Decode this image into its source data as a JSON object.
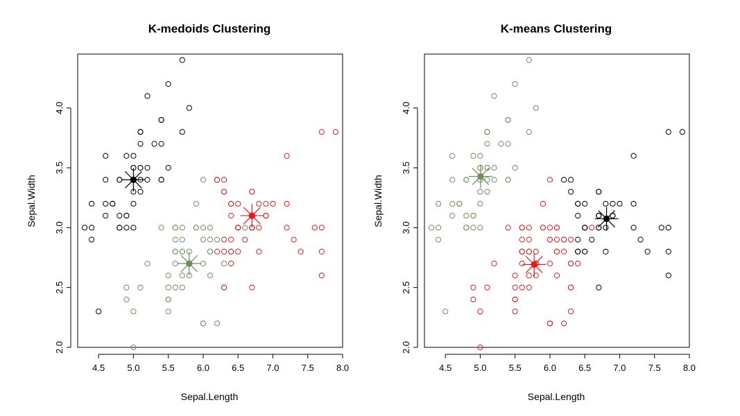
{
  "chart_data": [
    {
      "type": "scatter",
      "title": "K-medoids Clustering",
      "xlabel": "Sepal.Length",
      "ylabel": "Sepal.Width",
      "xlim": [
        4.2,
        8.0
      ],
      "ylim": [
        2.0,
        4.45
      ],
      "xticks": [
        "4.5",
        "5.0",
        "5.5",
        "6.0",
        "6.5",
        "7.0",
        "7.5",
        "8.0"
      ],
      "yticks": [
        "2.0",
        "2.5",
        "3.0",
        "3.5",
        "4.0"
      ],
      "grid": false,
      "colors": [
        "#000000",
        "#e41a1c",
        "#6b8e5a"
      ],
      "series": [
        {
          "color": "#000000",
          "x": [
            5.1,
            4.9,
            4.7,
            4.6,
            5.0,
            5.4,
            4.6,
            5.0,
            4.4,
            4.9,
            5.4,
            4.8,
            4.8,
            4.3,
            5.8,
            5.7,
            5.4,
            5.1,
            5.7,
            5.1,
            5.4,
            5.1,
            4.6,
            5.1,
            4.8,
            5.0,
            5.0,
            5.2,
            5.2,
            4.7,
            4.8,
            5.4,
            5.2,
            5.5,
            4.9,
            5.0,
            5.5,
            4.9,
            4.4,
            5.1,
            5.0,
            4.5,
            4.4,
            5.0,
            5.1,
            4.8,
            5.1,
            4.6,
            5.3,
            5.0
          ],
          "y": [
            3.5,
            3.0,
            3.2,
            3.1,
            3.6,
            3.9,
            3.4,
            3.4,
            2.9,
            3.1,
            3.7,
            3.4,
            3.0,
            3.0,
            4.0,
            4.4,
            3.9,
            3.5,
            3.8,
            3.8,
            3.4,
            3.7,
            3.6,
            3.3,
            3.4,
            3.0,
            3.4,
            3.5,
            3.4,
            3.2,
            3.1,
            3.4,
            4.1,
            4.2,
            3.1,
            3.2,
            3.5,
            3.6,
            3.0,
            3.4,
            3.5,
            2.3,
            3.2,
            3.5,
            3.8,
            3.0,
            3.8,
            3.2,
            3.7,
            3.3
          ]
        },
        {
          "color": "#e41a1c",
          "x": [
            7.0,
            6.4,
            6.9,
            6.5,
            6.3,
            6.6,
            6.7,
            6.4,
            6.3,
            6.7,
            6.8,
            6.7,
            6.7,
            6.3,
            6.5,
            6.2,
            6.3,
            6.5,
            7.6,
            7.3,
            6.7,
            7.2,
            6.5,
            6.4,
            6.8,
            6.4,
            6.5,
            7.7,
            7.7,
            6.9,
            7.7,
            6.7,
            7.2,
            6.2,
            6.4,
            7.2,
            7.4,
            7.9,
            6.4,
            6.3,
            7.7,
            6.3,
            6.4,
            6.9,
            6.7,
            6.9,
            6.8,
            6.7,
            6.7,
            6.3,
            6.5,
            6.2
          ],
          "y": [
            3.2,
            3.2,
            3.1,
            2.8,
            3.3,
            2.9,
            3.1,
            2.9,
            2.5,
            3.0,
            2.8,
            3.0,
            3.1,
            3.3,
            3.0,
            3.4,
            2.9,
            3.0,
            3.0,
            2.9,
            2.5,
            3.6,
            3.2,
            2.7,
            3.0,
            3.2,
            3.0,
            3.8,
            2.6,
            3.2,
            2.8,
            3.3,
            3.2,
            2.8,
            2.8,
            3.0,
            2.8,
            3.8,
            2.8,
            2.8,
            3.0,
            3.4,
            3.1,
            3.1,
            3.1,
            3.1,
            3.2,
            3.3,
            3.0,
            2.5,
            3.0,
            3.4
          ]
        },
        {
          "color": "#6b8e5a",
          "x": [
            5.5,
            5.7,
            4.9,
            5.2,
            5.0,
            5.9,
            6.0,
            6.1,
            5.6,
            5.6,
            5.8,
            6.2,
            5.6,
            5.9,
            6.1,
            6.1,
            6.6,
            6.0,
            5.7,
            5.5,
            5.5,
            5.8,
            6.0,
            5.4,
            6.0,
            5.6,
            5.5,
            5.5,
            6.1,
            5.8,
            5.0,
            5.6,
            5.7,
            5.7,
            6.2,
            5.1,
            5.7,
            5.8,
            4.9,
            5.7,
            5.8,
            6.0,
            6.1,
            5.6,
            6.0,
            5.9,
            6.3,
            5.6
          ],
          "y": [
            2.3,
            2.8,
            2.4,
            2.7,
            2.0,
            3.0,
            2.2,
            2.9,
            2.9,
            3.0,
            2.7,
            2.2,
            2.5,
            3.2,
            2.8,
            2.8,
            3.0,
            2.9,
            2.6,
            2.4,
            2.4,
            2.7,
            2.7,
            3.0,
            3.4,
            3.0,
            2.5,
            2.6,
            3.0,
            2.6,
            2.3,
            2.7,
            3.0,
            2.9,
            2.9,
            2.5,
            2.8,
            2.7,
            2.5,
            2.5,
            2.8,
            2.2,
            2.6,
            2.8,
            3.0,
            3.0,
            2.7,
            2.8
          ]
        }
      ],
      "centers": [
        {
          "color": "#000000",
          "x": 5.0,
          "y": 3.4
        },
        {
          "color": "#e41a1c",
          "x": 6.7,
          "y": 3.1
        },
        {
          "color": "#6b8e5a",
          "x": 5.8,
          "y": 2.7
        }
      ]
    },
    {
      "type": "scatter",
      "title": "K-means Clustering",
      "xlabel": "Sepal.Length",
      "ylabel": "Sepal.Width",
      "xlim": [
        4.2,
        8.0
      ],
      "ylim": [
        2.0,
        4.45
      ],
      "xticks": [
        "4.5",
        "5.0",
        "5.5",
        "6.0",
        "6.5",
        "7.0",
        "7.5",
        "8.0"
      ],
      "yticks": [
        "2.0",
        "2.5",
        "3.0",
        "3.5",
        "4.0"
      ],
      "grid": false,
      "colors": [
        "#6b8e5a",
        "#e41a1c",
        "#000000"
      ],
      "series": [
        {
          "color": "#6b8e5a",
          "x": [
            5.1,
            4.9,
            4.7,
            4.6,
            5.0,
            5.4,
            4.6,
            5.0,
            4.4,
            4.9,
            5.4,
            4.8,
            4.8,
            4.3,
            5.8,
            5.7,
            5.4,
            5.1,
            5.7,
            5.1,
            5.4,
            5.1,
            4.6,
            5.1,
            4.8,
            5.0,
            5.0,
            5.2,
            5.2,
            4.7,
            4.8,
            5.4,
            5.2,
            5.5,
            4.9,
            5.0,
            5.5,
            4.9,
            4.4,
            5.1,
            5.0,
            4.5,
            4.4,
            5.0,
            5.1,
            4.8,
            5.1,
            4.6,
            5.3,
            5.0
          ],
          "y": [
            3.5,
            3.0,
            3.2,
            3.1,
            3.6,
            3.9,
            3.4,
            3.4,
            2.9,
            3.1,
            3.7,
            3.4,
            3.0,
            3.0,
            4.0,
            4.4,
            3.9,
            3.5,
            3.8,
            3.8,
            3.4,
            3.7,
            3.6,
            3.3,
            3.4,
            3.0,
            3.4,
            3.5,
            3.4,
            3.2,
            3.1,
            3.4,
            4.1,
            4.2,
            3.1,
            3.2,
            3.5,
            3.6,
            3.0,
            3.4,
            3.5,
            2.3,
            3.2,
            3.5,
            3.8,
            3.0,
            3.8,
            3.2,
            3.7,
            3.3
          ]
        },
        {
          "color": "#e41a1c",
          "x": [
            5.5,
            5.7,
            4.9,
            5.2,
            5.0,
            5.9,
            6.0,
            6.1,
            5.6,
            5.6,
            5.8,
            6.2,
            5.6,
            5.9,
            6.1,
            6.1,
            6.6,
            6.0,
            5.7,
            5.5,
            5.5,
            5.8,
            6.0,
            5.4,
            6.0,
            5.6,
            5.5,
            5.5,
            6.1,
            5.8,
            5.0,
            5.6,
            5.7,
            5.7,
            6.2,
            5.1,
            5.7,
            5.8,
            4.9,
            5.7,
            5.8,
            6.0,
            6.1,
            5.6,
            6.0,
            5.9,
            6.3,
            5.6,
            6.4,
            6.3,
            6.2,
            6.3,
            6.5,
            6.1,
            6.3,
            6.0,
            6.3,
            6.2,
            6.3,
            6.0
          ],
          "y": [
            2.3,
            2.8,
            2.4,
            2.7,
            2.0,
            3.0,
            2.2,
            2.9,
            2.9,
            3.0,
            2.7,
            2.2,
            2.5,
            3.2,
            2.8,
            2.8,
            3.0,
            2.9,
            2.6,
            2.4,
            2.4,
            2.7,
            2.7,
            3.0,
            3.4,
            3.0,
            2.5,
            2.6,
            3.0,
            2.6,
            2.3,
            2.7,
            3.0,
            2.9,
            2.9,
            2.5,
            2.8,
            2.7,
            2.5,
            2.5,
            2.8,
            2.2,
            2.6,
            2.8,
            3.0,
            3.0,
            2.7,
            2.8,
            2.7,
            2.5,
            2.8,
            2.9,
            2.8,
            3.0,
            2.7,
            2.2,
            2.3,
            2.9,
            2.5,
            2.9
          ]
        },
        {
          "color": "#000000",
          "x": [
            7.0,
            6.4,
            6.9,
            6.5,
            6.6,
            6.7,
            6.4,
            6.7,
            6.8,
            6.7,
            6.7,
            6.5,
            7.6,
            7.3,
            6.7,
            7.2,
            6.5,
            6.8,
            6.4,
            6.5,
            7.7,
            7.7,
            6.9,
            7.7,
            6.7,
            7.2,
            6.4,
            7.2,
            7.4,
            7.9,
            6.4,
            7.7,
            6.4,
            6.9,
            6.7,
            6.9,
            6.8,
            6.7,
            6.3,
            6.3,
            6.5,
            6.2
          ],
          "y": [
            3.2,
            3.2,
            3.1,
            2.8,
            2.9,
            3.1,
            2.9,
            3.0,
            2.8,
            3.0,
            3.1,
            3.0,
            3.0,
            2.9,
            2.5,
            3.6,
            3.2,
            3.0,
            3.2,
            3.0,
            3.8,
            2.6,
            3.2,
            2.8,
            3.3,
            3.2,
            2.8,
            3.0,
            2.8,
            3.8,
            2.8,
            3.0,
            3.1,
            3.1,
            3.1,
            3.1,
            3.2,
            3.3,
            3.3,
            3.4,
            3.0,
            3.4
          ]
        }
      ],
      "centers": [
        {
          "color": "#6b8e5a",
          "x": 5.006,
          "y": 3.428
        },
        {
          "color": "#e41a1c",
          "x": 5.774,
          "y": 2.692
        },
        {
          "color": "#000000",
          "x": 6.812,
          "y": 3.074
        }
      ]
    }
  ]
}
